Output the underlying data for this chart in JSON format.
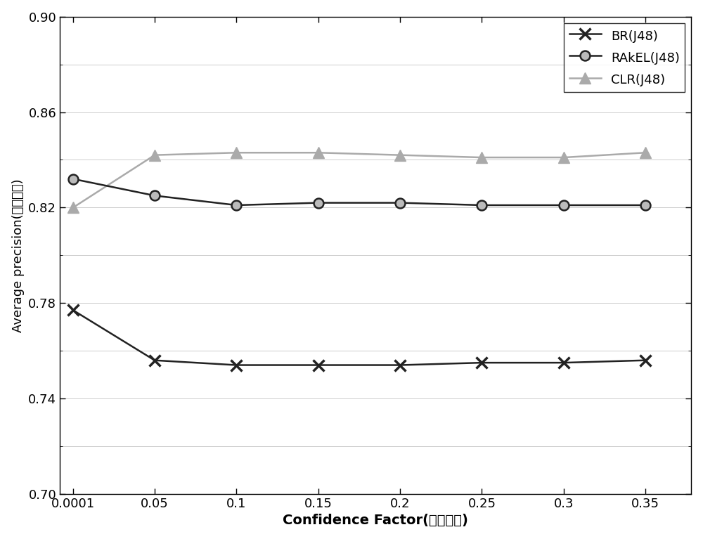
{
  "x": [
    0.0001,
    0.05,
    0.1,
    0.15,
    0.2,
    0.25,
    0.3,
    0.35
  ],
  "BR_J48": [
    0.777,
    0.756,
    0.754,
    0.754,
    0.754,
    0.755,
    0.755,
    0.756
  ],
  "RAkEL_J48": [
    0.832,
    0.825,
    0.821,
    0.822,
    0.822,
    0.821,
    0.821,
    0.821
  ],
  "CLR_J48": [
    0.82,
    0.842,
    0.843,
    0.843,
    0.842,
    0.841,
    0.841,
    0.843
  ],
  "xlabel": "Confidence Factor(置信系数)",
  "ylabel": "Average precision(平均精度)",
  "ylim": [
    0.7,
    0.9
  ],
  "yticks_shown": [
    0.7,
    0.74,
    0.78,
    0.82,
    0.86,
    0.9
  ],
  "yticks_minor": [
    0.72,
    0.76,
    0.8,
    0.84,
    0.88
  ],
  "xtick_labels": [
    "0.0001",
    "0.05",
    "0.1",
    "0.15",
    "0.2",
    "0.25",
    "0.3",
    "0.35"
  ],
  "dark_color": "#222222",
  "clr_color": "#aaaaaa",
  "rakel_face": "#bbbbbb",
  "legend_labels": [
    "BR(J48)",
    "RAkEL(J48)",
    "CLR(J48)"
  ],
  "linewidth": 1.8,
  "br_markersize": 12,
  "rakel_markersize": 10,
  "clr_markersize": 11
}
